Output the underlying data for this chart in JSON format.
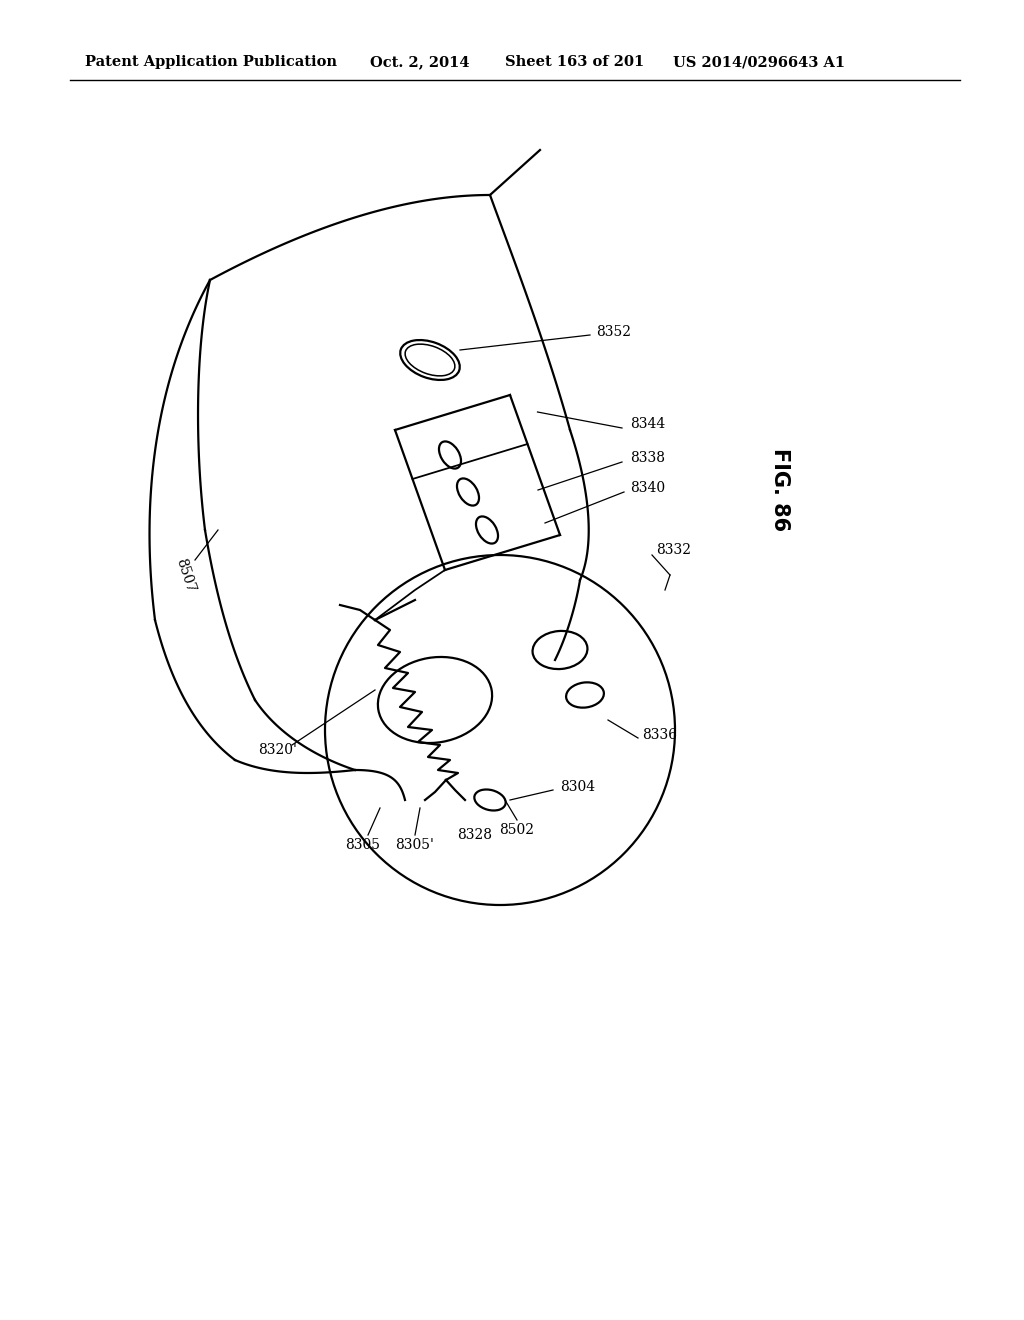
{
  "bg_color": "#ffffff",
  "line_color": "#000000",
  "header_text": "Patent Application Publication",
  "header_date": "Oct. 2, 2014",
  "header_sheet": "Sheet 163 of 201",
  "header_patent": "US 2014/0296643 A1",
  "fig_label": "FIG. 86",
  "lw": 1.6,
  "label_fontsize": 10,
  "header_fontsize": 10.5,
  "fig_fontsize": 15
}
